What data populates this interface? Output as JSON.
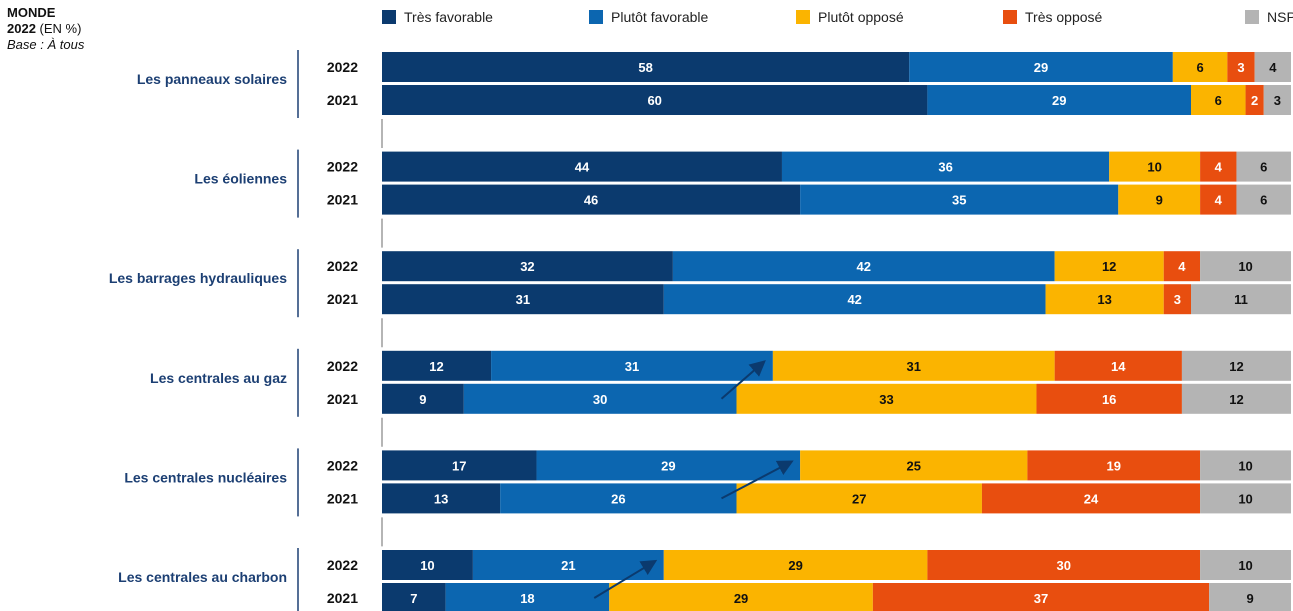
{
  "header": {
    "region": "MONDE",
    "year": "2022",
    "unit": "(EN %)",
    "base": "Base : À tous"
  },
  "colors": {
    "tres_favorable": "#0b3a6e",
    "plutot_favorable": "#0c66b0",
    "plutot_oppose": "#fbb400",
    "tres_oppose": "#e84e0f",
    "nsp": "#b4b4b4",
    "category_label": "#1c3f73",
    "arrow": "#0b3a6e"
  },
  "chart_data": {
    "type": "bar",
    "orientation": "horizontal",
    "stacked": true,
    "unit": "%",
    "xlim": [
      0,
      100
    ],
    "legend": {
      "placement": "top",
      "entries": [
        "Très favorable",
        "Plutôt favorable",
        "Plutôt opposé",
        "Très opposé",
        "NSP"
      ]
    },
    "categories": [
      {
        "label": "Les panneaux solaires",
        "years": [
          {
            "year": "2022",
            "values": [
              58,
              29,
              6,
              3,
              4
            ]
          },
          {
            "year": "2021",
            "values": [
              60,
              29,
              6,
              2,
              3
            ]
          }
        ]
      },
      {
        "label": "Les éoliennes",
        "years": [
          {
            "year": "2022",
            "values": [
              44,
              36,
              10,
              4,
              6
            ]
          },
          {
            "year": "2021",
            "values": [
              46,
              35,
              9,
              4,
              6
            ]
          }
        ]
      },
      {
        "label": "Les barrages hydrauliques",
        "years": [
          {
            "year": "2022",
            "values": [
              32,
              42,
              12,
              4,
              10
            ]
          },
          {
            "year": "2021",
            "values": [
              31,
              42,
              13,
              3,
              11
            ]
          }
        ]
      },
      {
        "label": "Les centrales au gaz",
        "years": [
          {
            "year": "2022",
            "values": [
              12,
              31,
              31,
              14,
              12
            ]
          },
          {
            "year": "2021",
            "values": [
              9,
              30,
              33,
              16,
              12
            ]
          }
        ],
        "trend_arrow": "up"
      },
      {
        "label": "Les centrales nucléaires",
        "years": [
          {
            "year": "2022",
            "values": [
              17,
              29,
              25,
              19,
              10
            ]
          },
          {
            "year": "2021",
            "values": [
              13,
              26,
              27,
              24,
              10
            ]
          }
        ],
        "trend_arrow": "up"
      },
      {
        "label": "Les centrales au charbon",
        "years": [
          {
            "year": "2022",
            "values": [
              10,
              21,
              29,
              30,
              10
            ]
          },
          {
            "year": "2021",
            "values": [
              7,
              18,
              29,
              37,
              9
            ]
          }
        ],
        "trend_arrow": "up"
      }
    ]
  }
}
